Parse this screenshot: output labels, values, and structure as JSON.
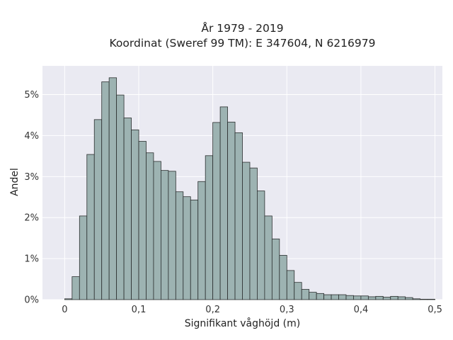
{
  "chart_data": {
    "type": "bar",
    "title": "År 1979 - 2019",
    "subtitle": "Koordinat (Sweref 99 TM): E 347604, N 6216979",
    "xlabel": "Signifikant våghöjd (m)",
    "ylabel": "Andel",
    "xlim": [
      -0.03,
      0.51
    ],
    "ylim": [
      0,
      0.057
    ],
    "grid": true,
    "bin_width": 0.01,
    "x_ticks": [
      {
        "value": 0,
        "label": "0"
      },
      {
        "value": 0.1,
        "label": "0,1"
      },
      {
        "value": 0.2,
        "label": "0,2"
      },
      {
        "value": 0.3,
        "label": "0,3"
      },
      {
        "value": 0.4,
        "label": "0,4"
      },
      {
        "value": 0.5,
        "label": "0,5"
      }
    ],
    "y_ticks": [
      {
        "value": 0,
        "label": "0%"
      },
      {
        "value": 0.01,
        "label": "1%"
      },
      {
        "value": 0.02,
        "label": "2%"
      },
      {
        "value": 0.03,
        "label": "3%"
      },
      {
        "value": 0.04,
        "label": "4%"
      },
      {
        "value": 0.05,
        "label": "5%"
      }
    ],
    "bins_start": [
      0.0,
      0.01,
      0.02,
      0.03,
      0.04,
      0.05,
      0.06,
      0.07,
      0.08,
      0.09,
      0.1,
      0.11,
      0.12,
      0.13,
      0.14,
      0.15,
      0.16,
      0.17,
      0.18,
      0.19,
      0.2,
      0.21,
      0.22,
      0.23,
      0.24,
      0.25,
      0.26,
      0.27,
      0.28,
      0.29,
      0.3,
      0.31,
      0.32,
      0.33,
      0.34,
      0.35,
      0.36,
      0.37,
      0.38,
      0.39,
      0.4,
      0.41,
      0.42,
      0.43,
      0.44,
      0.45,
      0.46,
      0.47,
      0.48,
      0.49
    ],
    "values": [
      0.0002,
      0.0056,
      0.0204,
      0.0354,
      0.0439,
      0.0531,
      0.0541,
      0.0499,
      0.0443,
      0.0414,
      0.0386,
      0.0358,
      0.0337,
      0.0315,
      0.0313,
      0.0263,
      0.0251,
      0.0243,
      0.0288,
      0.0351,
      0.0432,
      0.047,
      0.0433,
      0.0407,
      0.0335,
      0.0321,
      0.0265,
      0.0204,
      0.0148,
      0.0108,
      0.0071,
      0.0042,
      0.0025,
      0.0018,
      0.0015,
      0.0012,
      0.0012,
      0.0012,
      0.001,
      0.0009,
      0.0009,
      0.0007,
      0.0008,
      0.0006,
      0.0008,
      0.0007,
      0.0005,
      0.0002,
      0.0001,
      0.0001
    ],
    "bar_color": "#9db3b2",
    "bar_edge_color": "#2b2f2f",
    "plot_bg": "#eaeaf2",
    "grid_color": "#ffffff"
  }
}
